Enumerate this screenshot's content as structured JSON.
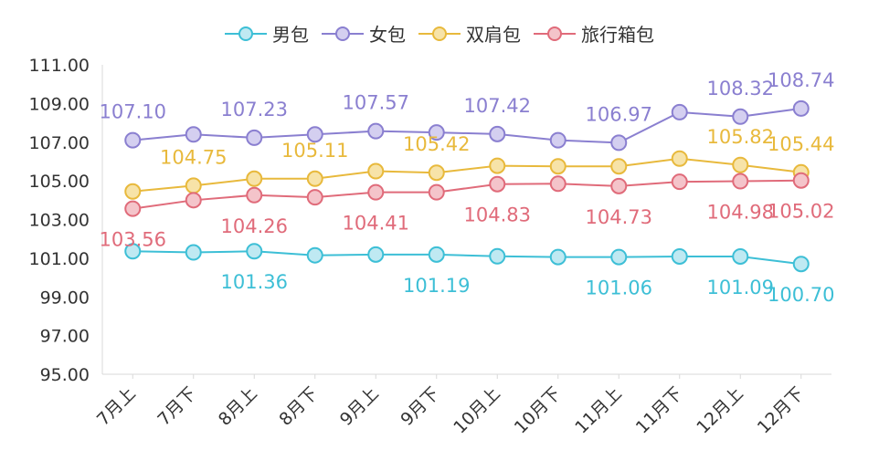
{
  "chart_data": {
    "type": "line",
    "categories": [
      "7月上",
      "7月下",
      "8月上",
      "8月下",
      "9月上",
      "9月下",
      "10月上",
      "10月下",
      "11月上",
      "11月下",
      "12月上",
      "12月下"
    ],
    "ylim": [
      95.0,
      111.0
    ],
    "yticks": [
      "95.00",
      "97.00",
      "99.00",
      "101.00",
      "103.00",
      "105.00",
      "107.00",
      "109.00",
      "111.00"
    ],
    "grid": false,
    "legend_position": "top-center",
    "series": [
      {
        "name": "男包",
        "color": "#3dbfd6",
        "fill": "#bfe9f2",
        "label_pos": "below",
        "values": [
          101.36,
          101.3,
          101.36,
          101.15,
          101.19,
          101.19,
          101.1,
          101.06,
          101.06,
          101.09,
          101.09,
          100.7
        ],
        "labels": [
          "",
          "",
          "101.36",
          "",
          "",
          "101.19",
          "",
          "",
          "101.06",
          "",
          "101.09",
          "100.70"
        ]
      },
      {
        "name": "女包",
        "color": "#8a7fd0",
        "fill": "#d4cff0",
        "label_pos": "above",
        "values": [
          107.1,
          107.4,
          107.23,
          107.4,
          107.57,
          107.5,
          107.42,
          107.1,
          106.97,
          108.55,
          108.32,
          108.74
        ],
        "labels": [
          "107.10",
          "",
          "107.23",
          "",
          "107.57",
          "",
          "107.42",
          "",
          "106.97",
          "",
          "108.32",
          "108.74"
        ]
      },
      {
        "name": "双肩包",
        "color": "#e8b93c",
        "fill": "#f7e3a8",
        "label_pos": "above",
        "values": [
          104.45,
          104.75,
          105.11,
          105.11,
          105.5,
          105.42,
          105.78,
          105.75,
          105.75,
          106.15,
          105.82,
          105.44
        ],
        "labels": [
          "",
          "104.75",
          "",
          "105.11",
          "",
          "105.42",
          "",
          "",
          "",
          "",
          "105.82",
          "105.44"
        ]
      },
      {
        "name": "旅行箱包",
        "color": "#e06b7a",
        "fill": "#f4c4ca",
        "label_pos": "below",
        "values": [
          103.56,
          104.0,
          104.26,
          104.15,
          104.41,
          104.41,
          104.83,
          104.85,
          104.73,
          104.95,
          104.98,
          105.02
        ],
        "labels": [
          "103.56",
          "",
          "104.26",
          "",
          "104.41",
          "",
          "104.83",
          "",
          "104.73",
          "",
          "104.98",
          "105.02"
        ]
      }
    ]
  }
}
